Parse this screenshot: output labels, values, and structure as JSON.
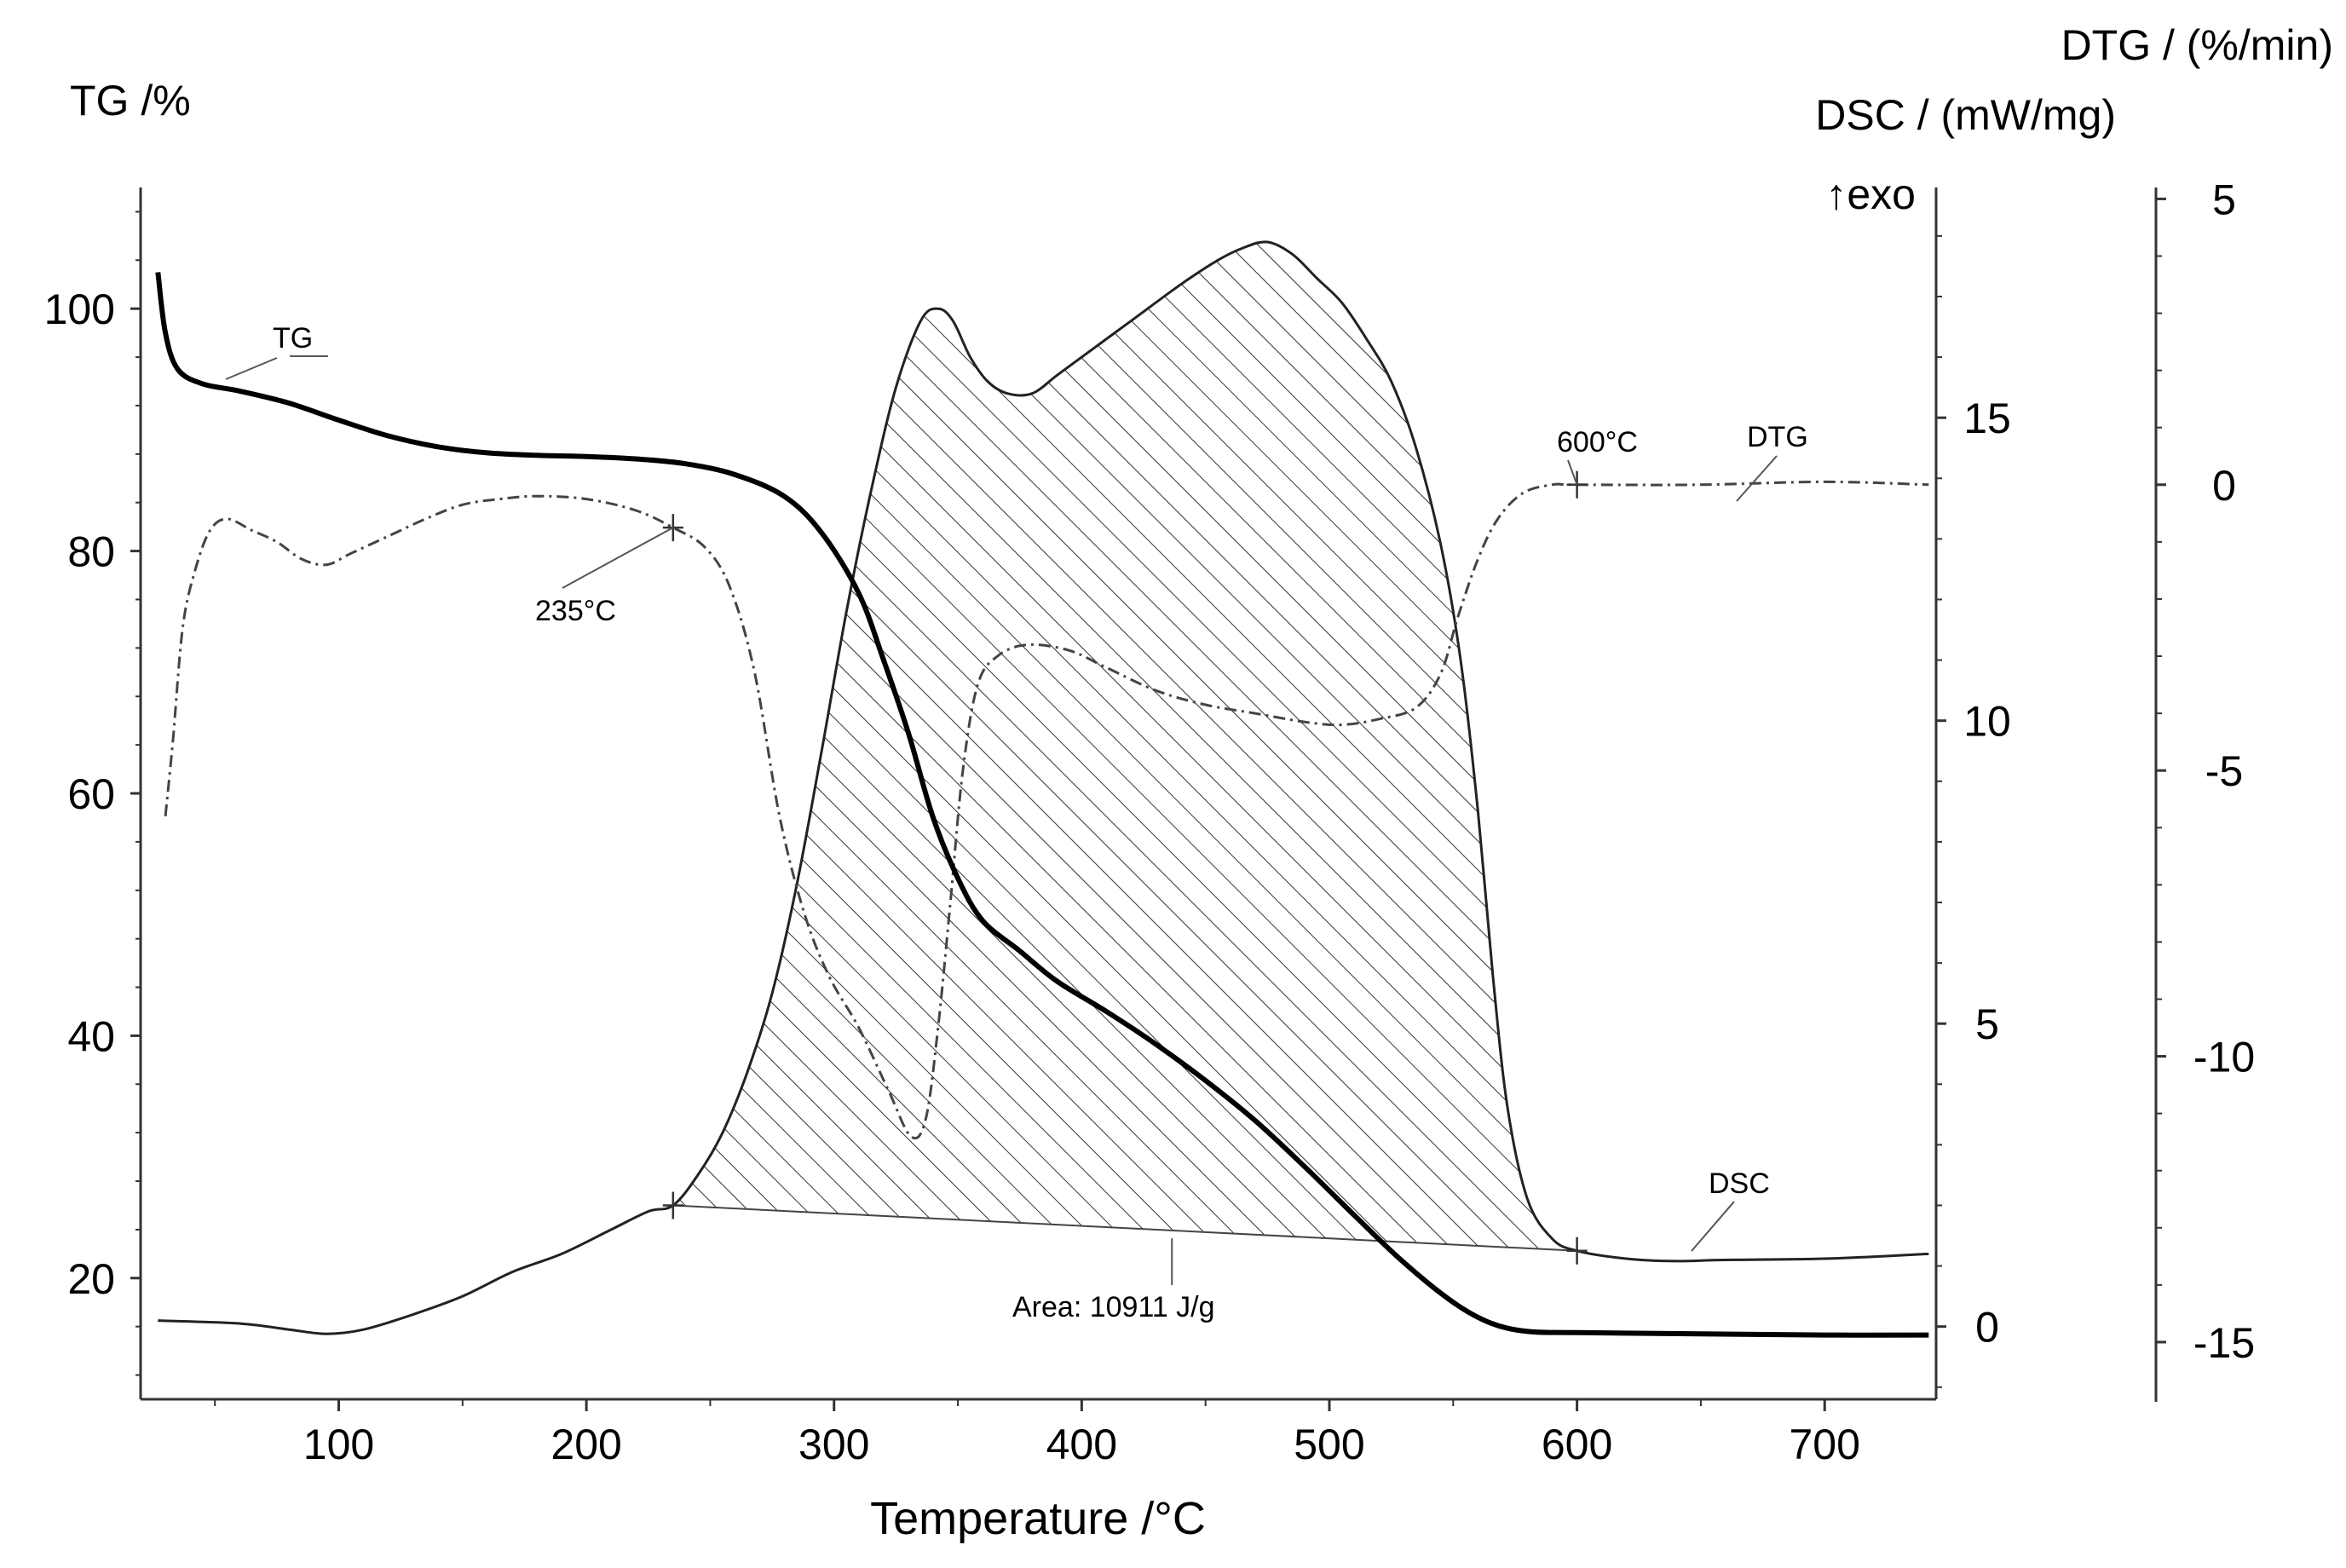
{
  "chart_data": {
    "type": "line",
    "title": "",
    "xlabel": "Temperature  /°C",
    "ylabel_left": "TG /%",
    "ylabel_right_dsc": "DSC / (mW/mg)",
    "ylabel_right_dtg": "DTG / (%/min)",
    "exo_marker": "↑exo",
    "xlim": [
      20,
      745
    ],
    "ylim_tg": [
      10,
      110
    ],
    "ylim_dsc": [
      -1.2,
      18.8
    ],
    "ylim_dtg": [
      -16,
      5.2
    ],
    "x_ticks": [
      100,
      200,
      300,
      400,
      500,
      600,
      700
    ],
    "tg_ticks": [
      20,
      40,
      60,
      80,
      100
    ],
    "dsc_ticks": [
      0,
      5,
      10,
      15
    ],
    "dtg_ticks": [
      5,
      0,
      -5,
      -10,
      -15
    ],
    "series": [
      {
        "name": "TG",
        "axis": "tg",
        "style": "solid",
        "points": [
          [
            27,
            103
          ],
          [
            30,
            98
          ],
          [
            35,
            95
          ],
          [
            45,
            93.8
          ],
          [
            60,
            93.2
          ],
          [
            80,
            92.2
          ],
          [
            100,
            90.8
          ],
          [
            120,
            89.5
          ],
          [
            140,
            88.6
          ],
          [
            160,
            88.1
          ],
          [
            180,
            87.9
          ],
          [
            200,
            87.8
          ],
          [
            220,
            87.6
          ],
          [
            240,
            87.2
          ],
          [
            260,
            86.3
          ],
          [
            280,
            84.5
          ],
          [
            295,
            81.5
          ],
          [
            310,
            76.5
          ],
          [
            320,
            71
          ],
          [
            330,
            65
          ],
          [
            340,
            58
          ],
          [
            350,
            53
          ],
          [
            360,
            49.5
          ],
          [
            375,
            47
          ],
          [
            390,
            44.5
          ],
          [
            410,
            42
          ],
          [
            430,
            39.3
          ],
          [
            450,
            36.3
          ],
          [
            470,
            33
          ],
          [
            490,
            29.2
          ],
          [
            510,
            25.2
          ],
          [
            530,
            21.3
          ],
          [
            550,
            18
          ],
          [
            565,
            16.3
          ],
          [
            580,
            15.6
          ],
          [
            600,
            15.5
          ],
          [
            650,
            15.4
          ],
          [
            700,
            15.3
          ],
          [
            742,
            15.3
          ]
        ]
      },
      {
        "name": "DSC",
        "axis": "dsc",
        "style": "solid",
        "points": [
          [
            27,
            0.1
          ],
          [
            60,
            0.05
          ],
          [
            80,
            -0.05
          ],
          [
            95,
            -0.12
          ],
          [
            110,
            -0.05
          ],
          [
            130,
            0.2
          ],
          [
            150,
            0.5
          ],
          [
            170,
            0.9
          ],
          [
            190,
            1.2
          ],
          [
            210,
            1.6
          ],
          [
            225,
            1.9
          ],
          [
            235,
            2.0
          ],
          [
            245,
            2.5
          ],
          [
            255,
            3.2
          ],
          [
            265,
            4.2
          ],
          [
            275,
            5.5
          ],
          [
            285,
            7.3
          ],
          [
            295,
            9.5
          ],
          [
            305,
            11.8
          ],
          [
            315,
            13.8
          ],
          [
            325,
            15.5
          ],
          [
            335,
            16.6
          ],
          [
            342,
            16.8
          ],
          [
            348,
            16.6
          ],
          [
            355,
            16.0
          ],
          [
            362,
            15.6
          ],
          [
            370,
            15.4
          ],
          [
            380,
            15.4
          ],
          [
            390,
            15.7
          ],
          [
            400,
            16.0
          ],
          [
            420,
            16.6
          ],
          [
            440,
            17.2
          ],
          [
            455,
            17.6
          ],
          [
            465,
            17.8
          ],
          [
            475,
            17.9
          ],
          [
            485,
            17.7
          ],
          [
            495,
            17.3
          ],
          [
            505,
            16.9
          ],
          [
            515,
            16.3
          ],
          [
            525,
            15.6
          ],
          [
            535,
            14.5
          ],
          [
            545,
            12.9
          ],
          [
            553,
            11
          ],
          [
            560,
            8.5
          ],
          [
            566,
            5.8
          ],
          [
            572,
            3.6
          ],
          [
            580,
            2.1
          ],
          [
            590,
            1.45
          ],
          [
            600,
            1.25
          ],
          [
            620,
            1.12
          ],
          [
            640,
            1.08
          ],
          [
            660,
            1.1
          ],
          [
            700,
            1.12
          ],
          [
            742,
            1.2
          ]
        ]
      },
      {
        "name": "DTG",
        "axis": "dtg",
        "style": "dashdot",
        "points": [
          [
            30,
            -5.8
          ],
          [
            33,
            -4.5
          ],
          [
            37,
            -2.5
          ],
          [
            42,
            -1.5
          ],
          [
            48,
            -0.8
          ],
          [
            55,
            -0.6
          ],
          [
            65,
            -0.8
          ],
          [
            75,
            -1.0
          ],
          [
            85,
            -1.3
          ],
          [
            95,
            -1.4
          ],
          [
            105,
            -1.2
          ],
          [
            120,
            -0.9
          ],
          [
            135,
            -0.6
          ],
          [
            150,
            -0.35
          ],
          [
            165,
            -0.25
          ],
          [
            180,
            -0.2
          ],
          [
            200,
            -0.25
          ],
          [
            220,
            -0.45
          ],
          [
            235,
            -0.75
          ],
          [
            248,
            -1.1
          ],
          [
            258,
            -1.8
          ],
          [
            268,
            -3.3
          ],
          [
            278,
            -5.8
          ],
          [
            288,
            -7.5
          ],
          [
            298,
            -8.6
          ],
          [
            310,
            -9.5
          ],
          [
            322,
            -10.6
          ],
          [
            331,
            -11.4
          ],
          [
            337,
            -11.1
          ],
          [
            342,
            -9.5
          ],
          [
            347,
            -7.3
          ],
          [
            352,
            -5.0
          ],
          [
            358,
            -3.5
          ],
          [
            366,
            -3.0
          ],
          [
            378,
            -2.8
          ],
          [
            395,
            -2.9
          ],
          [
            410,
            -3.2
          ],
          [
            430,
            -3.6
          ],
          [
            450,
            -3.85
          ],
          [
            470,
            -4.0
          ],
          [
            490,
            -4.15
          ],
          [
            505,
            -4.2
          ],
          [
            520,
            -4.1
          ],
          [
            535,
            -3.9
          ],
          [
            545,
            -3.3
          ],
          [
            552,
            -2.3
          ],
          [
            560,
            -1.3
          ],
          [
            568,
            -0.6
          ],
          [
            578,
            -0.15
          ],
          [
            590,
            0.0
          ],
          [
            600,
            0.0
          ],
          [
            650,
            0.0
          ],
          [
            700,
            0.05
          ],
          [
            742,
            0.0
          ]
        ]
      }
    ],
    "dsc_baseline": [
      [
        235,
        2.0
      ],
      [
        600,
        1.25
      ]
    ],
    "dsc_area_range": [
      235,
      600
    ],
    "annotations": {
      "tg_label": "TG",
      "dtg_label": "DTG",
      "dsc_label": "DSC",
      "onset_temp_label": "235°C",
      "end_temp_label": "600°C",
      "area_label": "Area: 10911  J/g",
      "onset_temp": 235,
      "end_temp": 600
    }
  }
}
